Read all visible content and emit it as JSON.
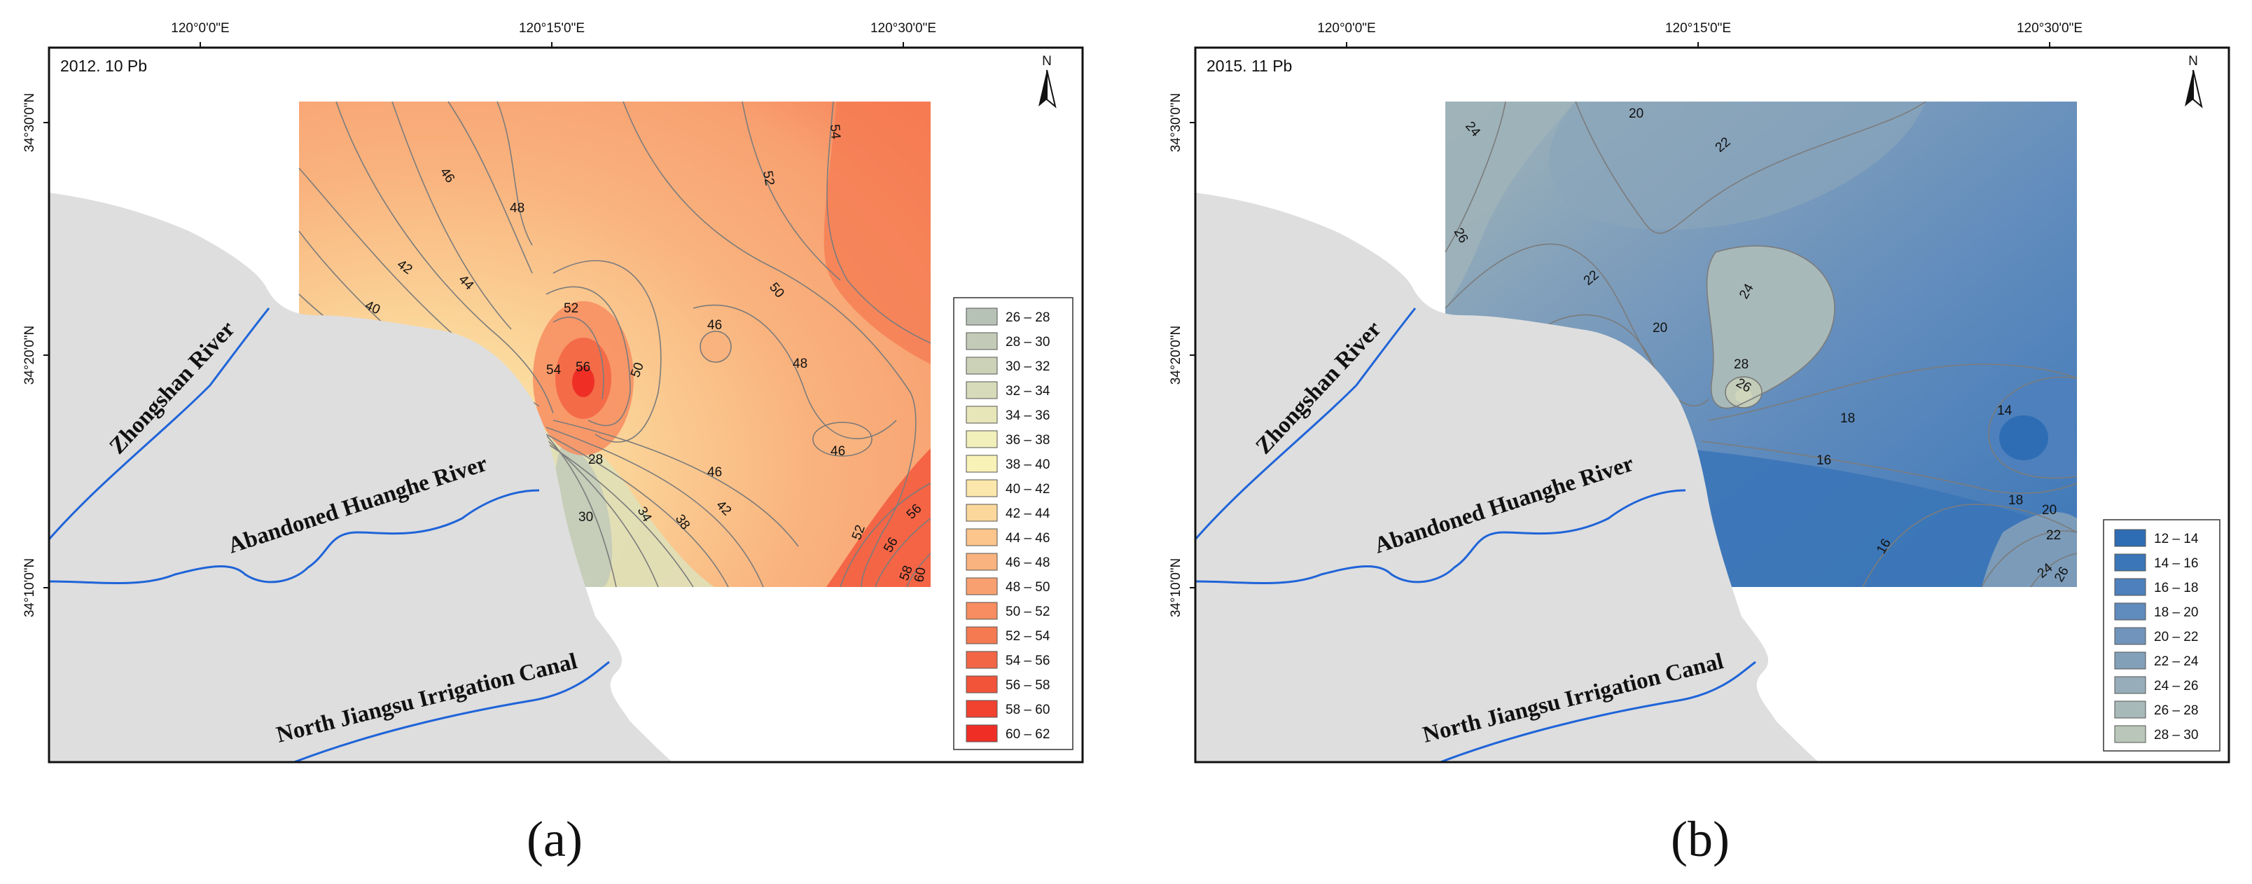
{
  "figure": {
    "caption_a": "(a)",
    "caption_b": "(b)"
  },
  "panels": {
    "a": {
      "title": "2012. 10  Pb",
      "top_ticks": [
        "120°0'0\"E",
        "120°15'0\"E",
        "120°30'0\"E"
      ],
      "left_ticks": [
        "34°30'0\"N",
        "34°20'0\"N",
        "34°10'0\"N"
      ],
      "north": "N",
      "rivers": {
        "zhongshan": "Zhongshan River",
        "huanghe": "Abandoned Huanghe River",
        "canal": "North Jiangsu Irrigation Canal"
      },
      "contour_labels": [
        "46",
        "48",
        "42",
        "44",
        "40",
        "52",
        "54",
        "56",
        "50",
        "28",
        "30",
        "34",
        "38",
        "42",
        "46",
        "46",
        "46",
        "48",
        "50",
        "52",
        "54",
        "52",
        "56",
        "58",
        "60"
      ],
      "legend": {
        "ranges": [
          "26 – 28",
          "28 – 30",
          "30 – 32",
          "32 – 34",
          "34 – 36",
          "36 – 38",
          "38 – 40",
          "40 – 42",
          "42 – 44",
          "44 – 46",
          "46 – 48",
          "48 – 50",
          "50 – 52",
          "52 – 54",
          "54 – 56",
          "56 – 58",
          "58 – 60",
          "60 – 62"
        ],
        "colors": [
          "#b6c2b5",
          "#c3cbb8",
          "#ccd2b7",
          "#d8dbb9",
          "#e6e6b8",
          "#f1efba",
          "#f9f2b7",
          "#fbe7ab",
          "#fbd79b",
          "#fbc58b",
          "#f9b37e",
          "#f8a070",
          "#f78d60",
          "#f57a52",
          "#f36645",
          "#f25439",
          "#f1412f",
          "#ef2f26"
        ]
      }
    },
    "b": {
      "title": "2015. 11  Pb",
      "top_ticks": [
        "120°0'0\"E",
        "120°15'0\"E",
        "120°30'0\"E"
      ],
      "left_ticks": [
        "34°30'0\"N",
        "34°20'0\"N",
        "34°10'0\"N"
      ],
      "north": "N",
      "rivers": {
        "zhongshan": "Zhongshan River",
        "huanghe": "Abandoned Huanghe River",
        "canal": "North Jiangsu Irrigation Canal"
      },
      "contour_labels": [
        "20",
        "24",
        "22",
        "26",
        "22",
        "24",
        "20",
        "28",
        "26",
        "18",
        "16",
        "14",
        "18",
        "16",
        "20",
        "22",
        "24",
        "26"
      ],
      "legend": {
        "ranges": [
          "12 – 14",
          "14 – 16",
          "16 – 18",
          "18 – 20",
          "20 – 22",
          "22 – 24",
          "24 – 26",
          "26 – 28",
          "28 – 30"
        ],
        "colors": [
          "#2e6db4",
          "#3b76b8",
          "#4d80bc",
          "#5f8bbd",
          "#7094bb",
          "#83a0b9",
          "#97adb9",
          "#a8b9b9",
          "#b9c6b9"
        ]
      }
    }
  }
}
